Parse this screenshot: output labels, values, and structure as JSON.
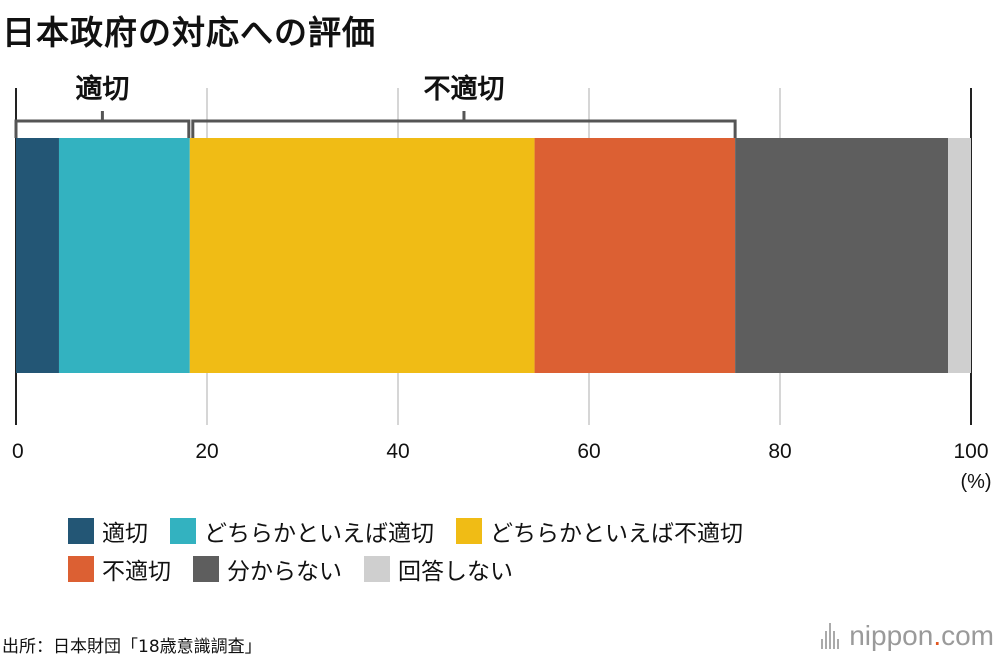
{
  "title": "日本政府の対応への評価",
  "chart_data": {
    "type": "bar",
    "orientation": "horizontal-stacked",
    "series": [
      {
        "name": "適切",
        "value": 4.5,
        "color": "#235675"
      },
      {
        "name": "どちらかといえば適切",
        "value": 13.7,
        "color": "#33b2c0"
      },
      {
        "name": "どちらかといえば不適切",
        "value": 36.1,
        "color": "#f0bc15"
      },
      {
        "name": "不適切",
        "value": 21.0,
        "color": "#dc6033"
      },
      {
        "name": "分からない",
        "value": 22.3,
        "color": "#5e5e5e"
      },
      {
        "name": "回答しない",
        "value": 2.4,
        "color": "#cfcfcf"
      }
    ],
    "xlim": [
      0,
      100
    ],
    "xticks": [
      0,
      20,
      40,
      60,
      80,
      100
    ],
    "xtick_labels": [
      "0",
      "20",
      "40",
      "60",
      "80",
      "100"
    ],
    "unit": "(%)",
    "grid": true,
    "brackets": [
      {
        "label": "適切",
        "from": 0,
        "to": 18.2
      },
      {
        "label": "不適切",
        "from": 18.2,
        "to": 75.3
      }
    ],
    "legend_position": "bottom"
  },
  "legend_rows": [
    [
      0,
      1,
      2
    ],
    [
      3,
      4,
      5
    ]
  ],
  "source": "出所：日本財団「18歳意識調査」",
  "brand": {
    "name": "nippon",
    "dot": ".",
    "suffix": "com"
  }
}
